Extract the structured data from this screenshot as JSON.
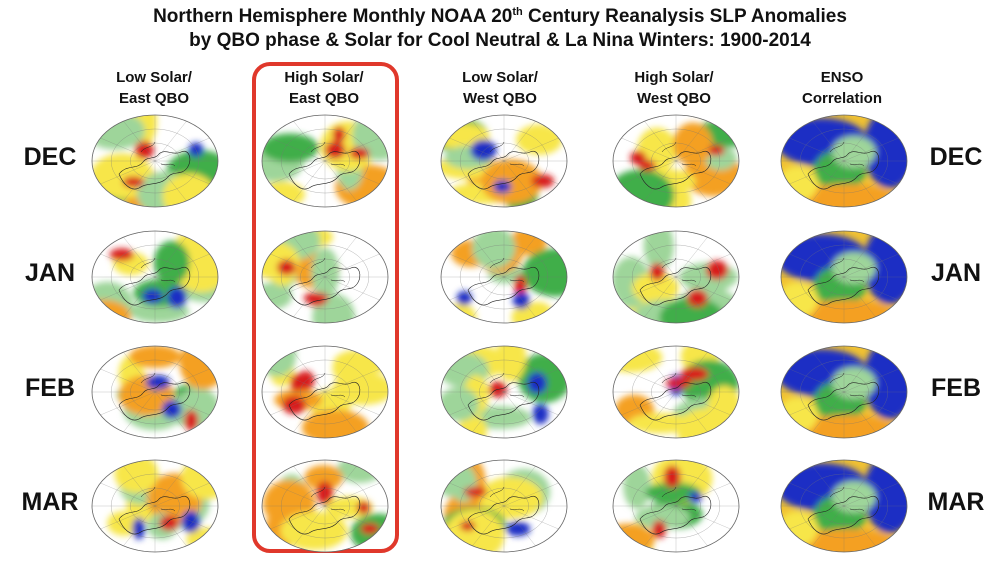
{
  "title": {
    "line1_a": "Northern Hemisphere Monthly NOAA 20",
    "line1_sup": "th",
    "line1_b": " Century Reanalysis SLP Anomalies",
    "line2": "by QBO phase & Solar for Cool Neutral & La Nina Winters: 1900-2014"
  },
  "columns": [
    {
      "line1": "Low Solar/",
      "line2": "East QBO"
    },
    {
      "line1": "High Solar/",
      "line2": "East QBO"
    },
    {
      "line1": "Low Solar/",
      "line2": "West QBO"
    },
    {
      "line1": "High Solar/",
      "line2": "West QBO"
    },
    {
      "line1": "ENSO",
      "line2": "Correlation"
    }
  ],
  "months": [
    "DEC",
    "JAN",
    "FEB",
    "MAR"
  ],
  "highlighted_column": 1,
  "colors": {
    "highlight": "#e0382b",
    "positive_strong": "#d81f1f",
    "positive": "#f4a020",
    "positive_weak": "#f7e64a",
    "negative_weak": "#9ed59a",
    "negative": "#3fae49",
    "negative_strong": "#1f2fc4"
  }
}
